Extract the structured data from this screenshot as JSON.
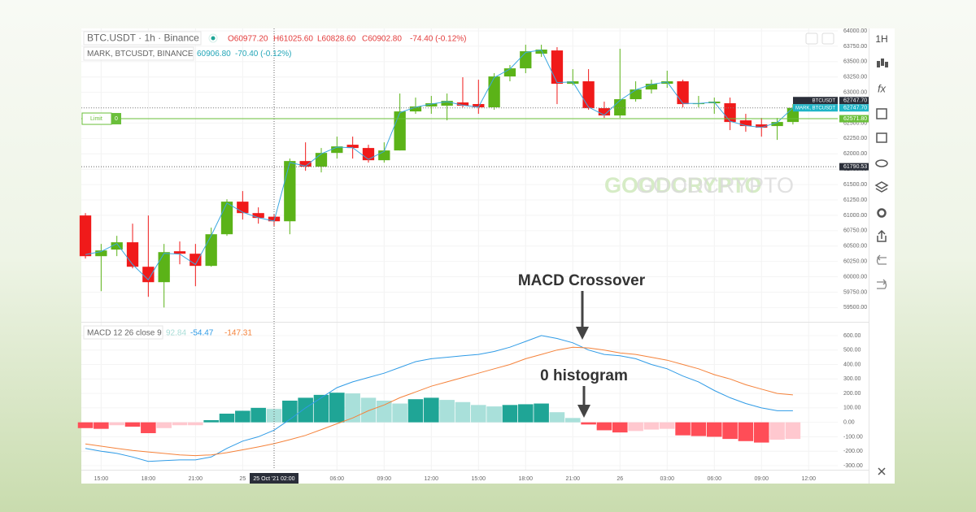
{
  "chart_data": [
    {
      "type": "candlestick",
      "title": "BTC.USDT · 1h · Binance",
      "legend": [
        "O60977.20",
        "H61025.60",
        "L60828.60",
        "C60902.80",
        "-74.40 (-0.12%)"
      ],
      "mark_legend": [
        "MARK, BTCUSDT, BINANCE",
        "60906.80",
        "-70.40 (-0.12%)"
      ],
      "up_color": "#5bb318",
      "down_color": "#f01a1a",
      "open": [
        60997,
        60335,
        60442,
        60561,
        60163,
        59912,
        60415,
        60375,
        60177,
        60692,
        61222,
        61036,
        60977.2,
        60903,
        61883,
        61791,
        62015,
        62148,
        62095,
        61896,
        62055,
        62690,
        62770,
        62783,
        62836,
        62810,
        62757,
        63259,
        63391,
        63629,
        63682,
        63140,
        63180,
        62743,
        62624,
        62889,
        63047,
        63140,
        63180,
        62809,
        62823,
        62823,
        62545,
        62479,
        62452,
        62518
      ],
      "high": [
        61036,
        60534,
        60666,
        60864,
        60997,
        60534,
        60574,
        60534,
        60799,
        61261,
        61394,
        61129,
        61025.6,
        61923,
        62187,
        62095,
        62280,
        62280,
        62148,
        62187,
        62981,
        62915,
        62942,
        62981,
        63246,
        63206,
        63312,
        63444,
        63775,
        63775,
        63735,
        63378,
        63378,
        62849,
        63709,
        63180,
        63206,
        63352,
        63206,
        62942,
        62915,
        62915,
        62651,
        62584,
        62584,
        62809
      ],
      "low": [
        60296,
        59766,
        60336,
        60137,
        59674,
        59500,
        60203,
        59846,
        60163,
        60666,
        60931,
        60864,
        60828.6,
        60692,
        61724,
        61698,
        61923,
        61923,
        61857,
        61857,
        62055,
        62651,
        62651,
        62545,
        62757,
        62651,
        62717,
        63180,
        63312,
        63577,
        62809,
        63114,
        62717,
        62584,
        62584,
        62849,
        62981,
        63074,
        62757,
        62757,
        62651,
        62386,
        62359,
        62280,
        62227,
        62478
      ],
      "close": [
        60335,
        60428,
        60561,
        60163,
        59912,
        60401,
        60375,
        60177,
        60692,
        61222,
        61036,
        60957,
        60902.8,
        61883,
        61791,
        62015,
        62121,
        62095,
        61896,
        62055,
        62690,
        62770,
        62823,
        62862,
        62783,
        62757,
        63259,
        63391,
        63669,
        63696,
        63140,
        63180,
        62743,
        62624,
        62889,
        63047,
        63140,
        63180,
        62809,
        62823,
        62849,
        62518,
        62452,
        62426,
        62518,
        62747.7
      ],
      "mark": {
        "name": "MARK",
        "color": "#3aa7e0",
        "values": [
          60360,
          60410,
          60540,
          60200,
          59950,
          60380,
          60370,
          60200,
          60670,
          61200,
          61050,
          60960,
          60906.8,
          61860,
          61800,
          62000,
          62110,
          62100,
          61910,
          62040,
          62670,
          62760,
          62810,
          62850,
          62790,
          62760,
          63240,
          63380,
          63650,
          63690,
          63160,
          63170,
          62760,
          62630,
          62870,
          63040,
          63130,
          63170,
          62820,
          62820,
          62840,
          62530,
          62460,
          62430,
          62510,
          62747.7
        ]
      },
      "xlim": [
        -0.26,
        47.85
      ],
      "xticks": [
        {
          "value": 1,
          "label": "15:00"
        },
        {
          "value": 4,
          "label": "18:00"
        },
        {
          "value": 7,
          "label": "21:00"
        },
        {
          "value": 10,
          "label": "25"
        },
        {
          "value": 16,
          "label": "06:00"
        },
        {
          "value": 19,
          "label": "09:00"
        },
        {
          "value": 22,
          "label": "12:00"
        },
        {
          "value": 25,
          "label": "15:00"
        },
        {
          "value": 28,
          "label": "18:00"
        },
        {
          "value": 31,
          "label": "21:00"
        },
        {
          "value": 34,
          "label": "26"
        },
        {
          "value": 37,
          "label": "03:00"
        },
        {
          "value": 40,
          "label": "06:00"
        },
        {
          "value": 43,
          "label": "09:00"
        },
        {
          "value": 46,
          "label": "12:00"
        }
      ],
      "ylim": [
        59280,
        64040
      ],
      "yticks": [
        {
          "value": 59500,
          "label": "59500.00"
        },
        {
          "value": 59750,
          "label": "59750.00"
        },
        {
          "value": 60000,
          "label": "60000.00"
        },
        {
          "value": 60250,
          "label": "60250.00"
        },
        {
          "value": 60500,
          "label": "60500.00"
        },
        {
          "value": 60750,
          "label": "60750.00"
        },
        {
          "value": 61000,
          "label": "61000.00"
        },
        {
          "value": 61250,
          "label": "61250.00"
        },
        {
          "value": 61500,
          "label": "61500.00"
        },
        {
          "value": 61750,
          "label": "61750.00"
        },
        {
          "value": 62000,
          "label": "62000.00"
        },
        {
          "value": 62250,
          "label": "62250.00"
        },
        {
          "value": 62500,
          "label": "62500.00"
        },
        {
          "value": 62750,
          "label": "62750.00"
        },
        {
          "value": 63000,
          "label": "63000.00"
        },
        {
          "value": 63250,
          "label": "63250.00"
        },
        {
          "value": 63500,
          "label": "63500.00"
        },
        {
          "value": 63750,
          "label": "63750.00"
        },
        {
          "value": 64000,
          "label": "64000.00"
        }
      ],
      "grid": true,
      "price_labels": [
        {
          "name": "BTCUSDT",
          "value": 62747.7,
          "label": "62747.70",
          "color": "#2a2e39"
        },
        {
          "name": "MARK, BTCUSDT",
          "value": 62747.7,
          "label": "62747.70",
          "color": "#1fb5c7"
        }
      ],
      "order": {
        "name": "Limit",
        "quantity": 0,
        "value": 62571.8,
        "label": "62571.80",
        "color": "#6abf3a"
      },
      "crosshair": {
        "value": 61790.53,
        "label": "61790.53",
        "x": {
          "value": 12,
          "label": "25 Oct '21  02:00"
        }
      }
    },
    {
      "type": "macd",
      "title": "MACD 12 26 close 9",
      "palette": [
        "#1fa596",
        "#a9e0da",
        "#ff4d57",
        "#ffc8cf"
      ],
      "series": [
        {
          "name": "Histogram",
          "values": [
            -40,
            -45,
            -20,
            -30,
            -75,
            -40,
            -20,
            -20,
            15,
            60,
            80,
            100,
            92.84,
            150,
            170,
            190,
            205,
            200,
            170,
            150,
            130,
            160,
            170,
            155,
            140,
            120,
            110,
            120,
            125,
            130,
            70,
            30,
            -15,
            -55,
            -70,
            -60,
            -50,
            -45,
            -90,
            -95,
            -100,
            -115,
            -130,
            -140,
            -120,
            -115
          ]
        },
        {
          "name": "MACD",
          "color": "#2f9be6",
          "values": [
            -180,
            -200,
            -215,
            -240,
            -270,
            -265,
            -260,
            -260,
            -240,
            -180,
            -130,
            -100,
            -54.47,
            20,
            100,
            170,
            240,
            280,
            310,
            340,
            380,
            420,
            440,
            450,
            460,
            470,
            490,
            520,
            560,
            600,
            580,
            550,
            500,
            470,
            460,
            440,
            400,
            370,
            320,
            280,
            220,
            170,
            130,
            100,
            80,
            80
          ]
        },
        {
          "name": "Signal",
          "color": "#f5823a",
          "values": [
            -150,
            -165,
            -180,
            -195,
            -205,
            -215,
            -225,
            -230,
            -225,
            -210,
            -190,
            -170,
            -147.31,
            -120,
            -90,
            -50,
            -10,
            30,
            80,
            120,
            170,
            210,
            250,
            280,
            310,
            340,
            370,
            400,
            440,
            470,
            500,
            520,
            515,
            500,
            480,
            470,
            450,
            430,
            400,
            370,
            330,
            300,
            260,
            230,
            200,
            190
          ]
        }
      ],
      "ylim": [
        -328,
        684
      ],
      "yticks": [
        {
          "value": -300,
          "label": "-300.00"
        },
        {
          "value": -200,
          "label": "-200.00"
        },
        {
          "value": -100,
          "label": "-100.00"
        },
        {
          "value": 0,
          "label": "0.00"
        },
        {
          "value": 100,
          "label": "100.00"
        },
        {
          "value": 200,
          "label": "200.00"
        },
        {
          "value": 300,
          "label": "300.00"
        },
        {
          "value": 400,
          "label": "400.00"
        },
        {
          "value": 500,
          "label": "500.00"
        },
        {
          "value": 600,
          "label": "600.00"
        }
      ]
    }
  ],
  "toolbar": {
    "interval": "1H",
    "indicator": "fx"
  },
  "watermark": "GOODCRYPTO",
  "annotations": [
    "MACD Crossover",
    "0 histogram"
  ]
}
